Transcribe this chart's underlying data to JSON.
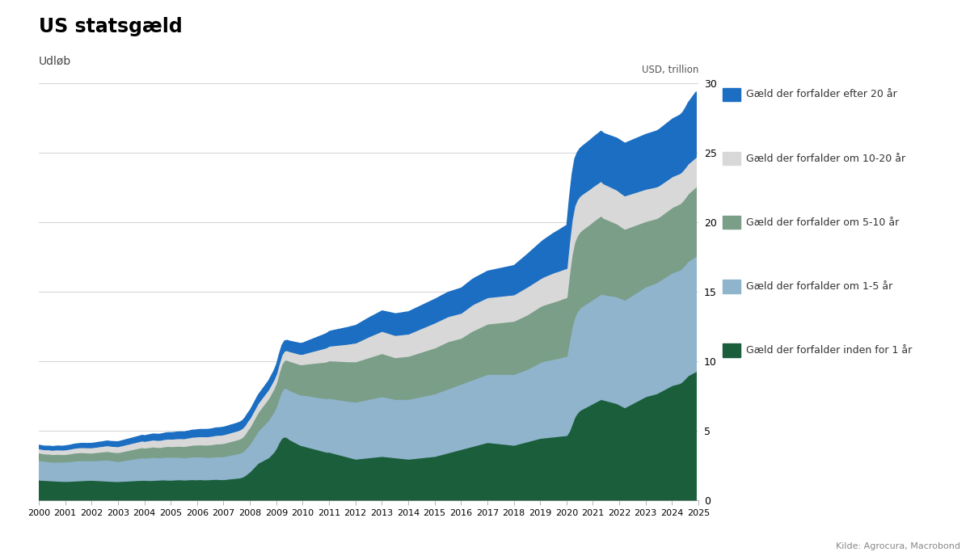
{
  "title": "US statsgæld",
  "subtitle": "Udløb",
  "ylabel": "USD, trillion",
  "source": "Kilde: Agrocura, Macrobond",
  "xlim": [
    2000,
    2025
  ],
  "ylim": [
    0,
    30
  ],
  "yticks": [
    0,
    5,
    10,
    15,
    20,
    25,
    30
  ],
  "colors": {
    "under_1yr": "#1b5e3b",
    "1_5yr": "#8fb4cc",
    "5_10yr": "#7a9e88",
    "10_20yr": "#d8d8d8",
    "over_20yr": "#1b6ec2"
  },
  "legend_labels": [
    "Gæld der forfalder efter 20 år",
    "Gæld der forfalder om 10-20 år",
    "Gæld der forfalder om 5-10 år",
    "Gæld der forfalder om 1-5 år",
    "Gæld der forfalder inden for 1 år"
  ],
  "years": [
    2000.0,
    2000.1,
    2000.2,
    2000.3,
    2000.4,
    2000.5,
    2000.6,
    2000.7,
    2000.8,
    2000.9,
    2001.0,
    2001.1,
    2001.2,
    2001.3,
    2001.4,
    2001.5,
    2001.6,
    2001.7,
    2001.8,
    2001.9,
    2002.0,
    2002.1,
    2002.2,
    2002.3,
    2002.4,
    2002.5,
    2002.6,
    2002.7,
    2002.8,
    2002.9,
    2003.0,
    2003.1,
    2003.2,
    2003.3,
    2003.4,
    2003.5,
    2003.6,
    2003.7,
    2003.8,
    2003.9,
    2004.0,
    2004.1,
    2004.2,
    2004.3,
    2004.4,
    2004.5,
    2004.6,
    2004.7,
    2004.8,
    2004.9,
    2005.0,
    2005.1,
    2005.2,
    2005.3,
    2005.4,
    2005.5,
    2005.6,
    2005.7,
    2005.8,
    2005.9,
    2006.0,
    2006.1,
    2006.2,
    2006.3,
    2006.4,
    2006.5,
    2006.6,
    2006.7,
    2006.8,
    2006.9,
    2007.0,
    2007.1,
    2007.2,
    2007.3,
    2007.4,
    2007.5,
    2007.6,
    2007.7,
    2007.8,
    2007.9,
    2008.0,
    2008.1,
    2008.2,
    2008.3,
    2008.4,
    2008.5,
    2008.6,
    2008.7,
    2008.8,
    2008.9,
    2009.0,
    2009.1,
    2009.2,
    2009.3,
    2009.4,
    2009.5,
    2009.6,
    2009.7,
    2009.8,
    2009.9,
    2010.0,
    2010.1,
    2010.2,
    2010.3,
    2010.4,
    2010.5,
    2010.6,
    2010.7,
    2010.8,
    2010.9,
    2011.0,
    2011.1,
    2011.2,
    2011.3,
    2011.4,
    2011.5,
    2011.6,
    2011.7,
    2011.8,
    2011.9,
    2012.0,
    2012.1,
    2012.2,
    2012.3,
    2012.4,
    2012.5,
    2012.6,
    2012.7,
    2012.8,
    2012.9,
    2013.0,
    2013.1,
    2013.2,
    2013.3,
    2013.4,
    2013.5,
    2013.6,
    2013.7,
    2013.8,
    2013.9,
    2014.0,
    2014.1,
    2014.2,
    2014.3,
    2014.4,
    2014.5,
    2014.6,
    2014.7,
    2014.8,
    2014.9,
    2015.0,
    2015.1,
    2015.2,
    2015.3,
    2015.4,
    2015.5,
    2015.6,
    2015.7,
    2015.8,
    2015.9,
    2016.0,
    2016.1,
    2016.2,
    2016.3,
    2016.4,
    2016.5,
    2016.6,
    2016.7,
    2016.8,
    2016.9,
    2017.0,
    2017.1,
    2017.2,
    2017.3,
    2017.4,
    2017.5,
    2017.6,
    2017.7,
    2017.8,
    2017.9,
    2018.0,
    2018.1,
    2018.2,
    2018.3,
    2018.4,
    2018.5,
    2018.6,
    2018.7,
    2018.8,
    2018.9,
    2019.0,
    2019.1,
    2019.2,
    2019.3,
    2019.4,
    2019.5,
    2019.6,
    2019.7,
    2019.8,
    2019.9,
    2020.0,
    2020.1,
    2020.2,
    2020.3,
    2020.4,
    2020.5,
    2020.6,
    2020.7,
    2020.8,
    2020.9,
    2021.0,
    2021.1,
    2021.2,
    2021.3,
    2021.4,
    2021.5,
    2021.6,
    2021.7,
    2021.8,
    2021.9,
    2022.0,
    2022.1,
    2022.2,
    2022.3,
    2022.4,
    2022.5,
    2022.6,
    2022.7,
    2022.8,
    2022.9,
    2023.0,
    2023.1,
    2023.2,
    2023.3,
    2023.4,
    2023.5,
    2023.6,
    2023.7,
    2023.8,
    2023.9,
    2024.0,
    2024.1,
    2024.2,
    2024.3,
    2024.4,
    2024.5,
    2024.6,
    2024.7,
    2024.8,
    2024.9
  ],
  "under_1yr": [
    1.5,
    1.48,
    1.47,
    1.46,
    1.45,
    1.44,
    1.43,
    1.42,
    1.41,
    1.4,
    1.4,
    1.4,
    1.41,
    1.42,
    1.43,
    1.44,
    1.45,
    1.46,
    1.47,
    1.48,
    1.48,
    1.47,
    1.46,
    1.45,
    1.44,
    1.43,
    1.42,
    1.41,
    1.4,
    1.39,
    1.39,
    1.4,
    1.41,
    1.42,
    1.43,
    1.44,
    1.45,
    1.46,
    1.47,
    1.48,
    1.48,
    1.47,
    1.46,
    1.47,
    1.48,
    1.49,
    1.5,
    1.51,
    1.5,
    1.49,
    1.49,
    1.5,
    1.51,
    1.52,
    1.51,
    1.5,
    1.51,
    1.52,
    1.53,
    1.52,
    1.52,
    1.53,
    1.52,
    1.51,
    1.52,
    1.53,
    1.54,
    1.55,
    1.54,
    1.53,
    1.53,
    1.55,
    1.57,
    1.59,
    1.61,
    1.63,
    1.65,
    1.7,
    1.8,
    1.95,
    2.1,
    2.3,
    2.5,
    2.7,
    2.8,
    2.9,
    3.0,
    3.1,
    3.3,
    3.5,
    3.8,
    4.2,
    4.5,
    4.6,
    4.55,
    4.4,
    4.3,
    4.2,
    4.1,
    4.0,
    3.95,
    3.9,
    3.85,
    3.8,
    3.75,
    3.7,
    3.65,
    3.6,
    3.55,
    3.5,
    3.5,
    3.45,
    3.4,
    3.35,
    3.3,
    3.25,
    3.2,
    3.15,
    3.1,
    3.05,
    3.0,
    3.02,
    3.04,
    3.06,
    3.08,
    3.1,
    3.12,
    3.14,
    3.16,
    3.18,
    3.2,
    3.18,
    3.16,
    3.14,
    3.12,
    3.1,
    3.08,
    3.06,
    3.04,
    3.02,
    3.0,
    3.02,
    3.04,
    3.06,
    3.08,
    3.1,
    3.12,
    3.14,
    3.16,
    3.18,
    3.2,
    3.25,
    3.3,
    3.35,
    3.4,
    3.45,
    3.5,
    3.55,
    3.6,
    3.65,
    3.7,
    3.75,
    3.8,
    3.85,
    3.9,
    3.95,
    4.0,
    4.05,
    4.1,
    4.15,
    4.2,
    4.18,
    4.16,
    4.14,
    4.12,
    4.1,
    4.08,
    4.06,
    4.04,
    4.02,
    4.0,
    4.05,
    4.1,
    4.15,
    4.2,
    4.25,
    4.3,
    4.35,
    4.4,
    4.45,
    4.5,
    4.52,
    4.54,
    4.56,
    4.58,
    4.6,
    4.62,
    4.64,
    4.66,
    4.68,
    4.7,
    5.0,
    5.5,
    6.0,
    6.3,
    6.5,
    6.6,
    6.7,
    6.8,
    6.9,
    7.0,
    7.1,
    7.2,
    7.3,
    7.25,
    7.2,
    7.15,
    7.1,
    7.05,
    7.0,
    6.9,
    6.8,
    6.7,
    6.8,
    6.9,
    7.0,
    7.1,
    7.2,
    7.3,
    7.4,
    7.5,
    7.55,
    7.6,
    7.65,
    7.7,
    7.8,
    7.9,
    8.0,
    8.1,
    8.2,
    8.3,
    8.35,
    8.4,
    8.45,
    8.6,
    8.8,
    9.0,
    9.1,
    9.2,
    9.3
  ],
  "1_5yr": [
    1.4,
    1.39,
    1.38,
    1.37,
    1.36,
    1.35,
    1.36,
    1.37,
    1.38,
    1.39,
    1.4,
    1.41,
    1.42,
    1.43,
    1.44,
    1.45,
    1.44,
    1.43,
    1.42,
    1.41,
    1.4,
    1.42,
    1.44,
    1.46,
    1.48,
    1.5,
    1.52,
    1.5,
    1.48,
    1.46,
    1.44,
    1.46,
    1.48,
    1.5,
    1.52,
    1.54,
    1.56,
    1.58,
    1.6,
    1.62,
    1.6,
    1.62,
    1.64,
    1.66,
    1.64,
    1.62,
    1.6,
    1.62,
    1.64,
    1.66,
    1.65,
    1.64,
    1.63,
    1.62,
    1.61,
    1.6,
    1.61,
    1.62,
    1.63,
    1.64,
    1.65,
    1.64,
    1.63,
    1.62,
    1.61,
    1.6,
    1.61,
    1.62,
    1.63,
    1.64,
    1.65,
    1.67,
    1.69,
    1.71,
    1.73,
    1.75,
    1.77,
    1.8,
    1.85,
    1.92,
    2.0,
    2.1,
    2.2,
    2.3,
    2.4,
    2.5,
    2.6,
    2.7,
    2.8,
    2.9,
    3.0,
    3.2,
    3.4,
    3.5,
    3.52,
    3.54,
    3.56,
    3.58,
    3.6,
    3.62,
    3.65,
    3.68,
    3.7,
    3.72,
    3.74,
    3.76,
    3.78,
    3.8,
    3.82,
    3.85,
    3.88,
    3.9,
    3.92,
    3.94,
    3.96,
    3.98,
    4.0,
    4.02,
    4.05,
    4.08,
    4.1,
    4.12,
    4.14,
    4.16,
    4.18,
    4.2,
    4.22,
    4.24,
    4.26,
    4.28,
    4.3,
    4.28,
    4.26,
    4.24,
    4.22,
    4.2,
    4.22,
    4.24,
    4.26,
    4.28,
    4.3,
    4.32,
    4.34,
    4.36,
    4.38,
    4.4,
    4.42,
    4.44,
    4.46,
    4.48,
    4.5,
    4.52,
    4.54,
    4.56,
    4.58,
    4.6,
    4.62,
    4.64,
    4.66,
    4.68,
    4.7,
    4.72,
    4.74,
    4.76,
    4.78,
    4.8,
    4.82,
    4.84,
    4.86,
    4.88,
    4.9,
    4.92,
    4.94,
    4.96,
    4.98,
    5.0,
    5.02,
    5.04,
    5.06,
    5.08,
    5.1,
    5.12,
    5.14,
    5.16,
    5.18,
    5.2,
    5.25,
    5.3,
    5.35,
    5.4,
    5.45,
    5.5,
    5.52,
    5.54,
    5.56,
    5.58,
    5.6,
    5.62,
    5.65,
    5.68,
    5.7,
    6.5,
    7.0,
    7.2,
    7.3,
    7.35,
    7.4,
    7.42,
    7.44,
    7.46,
    7.5,
    7.52,
    7.54,
    7.56,
    7.58,
    7.6,
    7.62,
    7.64,
    7.66,
    7.68,
    7.7,
    7.72,
    7.74,
    7.76,
    7.78,
    7.8,
    7.82,
    7.84,
    7.86,
    7.88,
    7.9,
    7.92,
    7.94,
    7.96,
    7.98,
    8.0,
    8.02,
    8.04,
    8.06,
    8.08,
    8.1,
    8.12,
    8.14,
    8.16,
    8.18,
    8.2,
    8.22,
    8.24,
    8.26,
    8.28
  ],
  "5_10yr": [
    0.55,
    0.54,
    0.53,
    0.54,
    0.55,
    0.54,
    0.55,
    0.56,
    0.55,
    0.54,
    0.54,
    0.55,
    0.56,
    0.57,
    0.58,
    0.57,
    0.58,
    0.57,
    0.56,
    0.55,
    0.56,
    0.57,
    0.58,
    0.59,
    0.6,
    0.61,
    0.62,
    0.61,
    0.62,
    0.63,
    0.64,
    0.65,
    0.66,
    0.67,
    0.68,
    0.69,
    0.7,
    0.71,
    0.72,
    0.73,
    0.72,
    0.73,
    0.74,
    0.75,
    0.74,
    0.73,
    0.74,
    0.75,
    0.76,
    0.77,
    0.76,
    0.77,
    0.78,
    0.79,
    0.8,
    0.81,
    0.82,
    0.83,
    0.84,
    0.85,
    0.85,
    0.86,
    0.87,
    0.88,
    0.89,
    0.9,
    0.91,
    0.92,
    0.93,
    0.94,
    0.95,
    0.96,
    0.97,
    0.98,
    0.99,
    1.0,
    1.02,
    1.05,
    1.1,
    1.18,
    1.2,
    1.25,
    1.3,
    1.35,
    1.4,
    1.45,
    1.5,
    1.55,
    1.6,
    1.65,
    1.7,
    1.8,
    1.9,
    2.0,
    2.05,
    2.1,
    2.12,
    2.14,
    2.16,
    2.18,
    2.2,
    2.25,
    2.3,
    2.35,
    2.4,
    2.45,
    2.5,
    2.55,
    2.6,
    2.65,
    2.7,
    2.72,
    2.74,
    2.76,
    2.78,
    2.8,
    2.82,
    2.84,
    2.86,
    2.88,
    2.9,
    2.92,
    2.94,
    2.96,
    2.98,
    3.0,
    3.02,
    3.04,
    3.06,
    3.08,
    3.1,
    3.08,
    3.06,
    3.04,
    3.02,
    3.0,
    3.02,
    3.04,
    3.06,
    3.08,
    3.1,
    3.12,
    3.14,
    3.16,
    3.18,
    3.2,
    3.22,
    3.24,
    3.26,
    3.28,
    3.3,
    3.32,
    3.34,
    3.36,
    3.38,
    3.4,
    3.38,
    3.36,
    3.34,
    3.32,
    3.3,
    3.35,
    3.4,
    3.45,
    3.5,
    3.52,
    3.54,
    3.56,
    3.58,
    3.6,
    3.62,
    3.64,
    3.66,
    3.68,
    3.7,
    3.72,
    3.74,
    3.76,
    3.78,
    3.8,
    3.82,
    3.84,
    3.86,
    3.88,
    3.9,
    3.92,
    3.94,
    3.96,
    3.98,
    4.0,
    4.02,
    4.04,
    4.06,
    4.08,
    4.1,
    4.12,
    4.14,
    4.16,
    4.18,
    4.2,
    4.22,
    4.8,
    5.2,
    5.4,
    5.45,
    5.48,
    5.5,
    5.52,
    5.54,
    5.56,
    5.58,
    5.6,
    5.62,
    5.64,
    5.5,
    5.45,
    5.4,
    5.35,
    5.3,
    5.25,
    5.2,
    5.15,
    5.1,
    5.05,
    5.0,
    4.95,
    4.9,
    4.85,
    4.8,
    4.75,
    4.7,
    4.68,
    4.66,
    4.64,
    4.62,
    4.6,
    4.62,
    4.64,
    4.66,
    4.68,
    4.7,
    4.72,
    4.74,
    4.76,
    4.78,
    4.8,
    4.85,
    4.9,
    4.95,
    5.0
  ],
  "10_20yr": [
    0.3,
    0.3,
    0.3,
    0.31,
    0.31,
    0.31,
    0.32,
    0.32,
    0.32,
    0.33,
    0.33,
    0.34,
    0.34,
    0.35,
    0.35,
    0.36,
    0.36,
    0.37,
    0.37,
    0.38,
    0.38,
    0.39,
    0.39,
    0.4,
    0.4,
    0.41,
    0.41,
    0.42,
    0.42,
    0.43,
    0.43,
    0.44,
    0.44,
    0.45,
    0.45,
    0.46,
    0.46,
    0.47,
    0.47,
    0.48,
    0.48,
    0.49,
    0.5,
    0.5,
    0.51,
    0.51,
    0.52,
    0.52,
    0.53,
    0.53,
    0.54,
    0.54,
    0.55,
    0.55,
    0.56,
    0.56,
    0.57,
    0.57,
    0.58,
    0.58,
    0.59,
    0.59,
    0.6,
    0.6,
    0.6,
    0.61,
    0.61,
    0.62,
    0.62,
    0.62,
    0.63,
    0.63,
    0.63,
    0.64,
    0.64,
    0.64,
    0.65,
    0.65,
    0.65,
    0.65,
    0.65,
    0.65,
    0.65,
    0.65,
    0.65,
    0.65,
    0.65,
    0.65,
    0.65,
    0.65,
    0.65,
    0.66,
    0.67,
    0.68,
    0.69,
    0.7,
    0.71,
    0.72,
    0.73,
    0.74,
    0.75,
    0.78,
    0.81,
    0.84,
    0.87,
    0.9,
    0.93,
    0.96,
    0.99,
    1.02,
    1.05,
    1.08,
    1.11,
    1.14,
    1.17,
    1.2,
    1.23,
    1.26,
    1.29,
    1.32,
    1.35,
    1.38,
    1.41,
    1.44,
    1.47,
    1.5,
    1.52,
    1.54,
    1.56,
    1.58,
    1.6,
    1.6,
    1.6,
    1.6,
    1.6,
    1.6,
    1.6,
    1.6,
    1.6,
    1.6,
    1.6,
    1.62,
    1.64,
    1.66,
    1.68,
    1.7,
    1.72,
    1.74,
    1.76,
    1.78,
    1.8,
    1.8,
    1.8,
    1.8,
    1.8,
    1.8,
    1.8,
    1.8,
    1.8,
    1.8,
    1.8,
    1.82,
    1.84,
    1.86,
    1.88,
    1.9,
    1.9,
    1.9,
    1.9,
    1.9,
    1.9,
    1.9,
    1.9,
    1.9,
    1.9,
    1.9,
    1.9,
    1.9,
    1.9,
    1.9,
    1.9,
    1.92,
    1.94,
    1.96,
    1.98,
    2.0,
    2.0,
    2.0,
    2.0,
    2.0,
    2.0,
    2.02,
    2.04,
    2.06,
    2.08,
    2.1,
    2.1,
    2.1,
    2.1,
    2.1,
    2.1,
    2.3,
    2.5,
    2.6,
    2.6,
    2.58,
    2.56,
    2.55,
    2.54,
    2.53,
    2.52,
    2.51,
    2.5,
    2.49,
    2.48,
    2.47,
    2.46,
    2.45,
    2.44,
    2.43,
    2.42,
    2.41,
    2.4,
    2.39,
    2.38,
    2.37,
    2.36,
    2.35,
    2.34,
    2.33,
    2.32,
    2.31,
    2.3,
    2.29,
    2.28,
    2.27,
    2.26,
    2.25,
    2.24,
    2.23,
    2.22,
    2.21,
    2.2,
    2.19,
    2.18,
    2.17,
    2.16,
    2.15,
    2.14,
    2.13
  ],
  "over_20yr": [
    0.25,
    0.25,
    0.25,
    0.25,
    0.26,
    0.26,
    0.26,
    0.27,
    0.27,
    0.27,
    0.28,
    0.28,
    0.28,
    0.29,
    0.29,
    0.29,
    0.3,
    0.3,
    0.3,
    0.31,
    0.31,
    0.31,
    0.32,
    0.32,
    0.32,
    0.33,
    0.33,
    0.33,
    0.34,
    0.34,
    0.35,
    0.35,
    0.36,
    0.36,
    0.37,
    0.37,
    0.38,
    0.38,
    0.39,
    0.4,
    0.4,
    0.41,
    0.42,
    0.42,
    0.43,
    0.43,
    0.44,
    0.44,
    0.45,
    0.45,
    0.46,
    0.46,
    0.47,
    0.47,
    0.48,
    0.48,
    0.49,
    0.49,
    0.5,
    0.5,
    0.5,
    0.51,
    0.51,
    0.52,
    0.52,
    0.52,
    0.53,
    0.53,
    0.53,
    0.54,
    0.54,
    0.54,
    0.55,
    0.55,
    0.55,
    0.56,
    0.56,
    0.56,
    0.57,
    0.57,
    0.58,
    0.58,
    0.59,
    0.6,
    0.61,
    0.62,
    0.63,
    0.64,
    0.65,
    0.66,
    0.67,
    0.68,
    0.7,
    0.72,
    0.73,
    0.74,
    0.75,
    0.76,
    0.77,
    0.78,
    0.8,
    0.82,
    0.85,
    0.87,
    0.9,
    0.92,
    0.95,
    0.97,
    1.0,
    1.02,
    1.05,
    1.08,
    1.1,
    1.12,
    1.14,
    1.16,
    1.18,
    1.2,
    1.22,
    1.24,
    1.26,
    1.28,
    1.3,
    1.32,
    1.34,
    1.36,
    1.38,
    1.4,
    1.42,
    1.44,
    1.46,
    1.48,
    1.5,
    1.52,
    1.54,
    1.55,
    1.56,
    1.57,
    1.58,
    1.59,
    1.6,
    1.61,
    1.62,
    1.63,
    1.64,
    1.65,
    1.66,
    1.67,
    1.68,
    1.69,
    1.7,
    1.71,
    1.72,
    1.73,
    1.74,
    1.75,
    1.76,
    1.77,
    1.78,
    1.79,
    1.8,
    1.81,
    1.82,
    1.83,
    1.84,
    1.85,
    1.86,
    1.87,
    1.88,
    1.89,
    1.9,
    1.92,
    1.94,
    1.96,
    1.98,
    2.0,
    2.02,
    2.04,
    2.06,
    2.08,
    2.1,
    2.15,
    2.2,
    2.25,
    2.3,
    2.35,
    2.4,
    2.45,
    2.5,
    2.55,
    2.6,
    2.65,
    2.7,
    2.75,
    2.8,
    2.85,
    2.9,
    2.95,
    3.0,
    3.05,
    3.1,
    3.2,
    3.3,
    3.4,
    3.42,
    3.44,
    3.46,
    3.48,
    3.5,
    3.52,
    3.54,
    3.56,
    3.58,
    3.6,
    3.62,
    3.64,
    3.66,
    3.68,
    3.7,
    3.72,
    3.74,
    3.76,
    3.78,
    3.8,
    3.82,
    3.84,
    3.86,
    3.88,
    3.9,
    3.92,
    3.94,
    3.96,
    3.98,
    4.0,
    4.02,
    4.04,
    4.06,
    4.08,
    4.1,
    4.12,
    4.14,
    4.16,
    4.18,
    4.2,
    4.22,
    4.3,
    4.4,
    4.5,
    4.6,
    4.7
  ]
}
